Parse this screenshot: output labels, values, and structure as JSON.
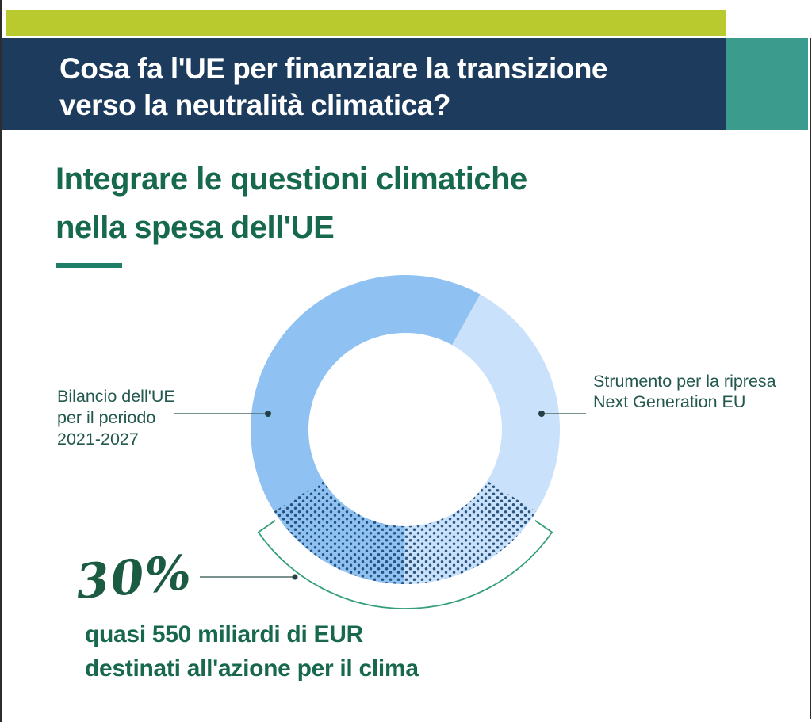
{
  "page": {
    "background": "#ffffff",
    "frame_line_color": "#2d2d2d"
  },
  "header": {
    "accent_bar_color": "#b9ca2e",
    "band_color": "#1c3b5d",
    "teal_block_color": "#3b9b8c",
    "title_color": "#ffffff",
    "title_line1": "Cosa fa l'UE per finanziare la transizione",
    "title_line2": "verso la neutralità climatica?"
  },
  "section": {
    "heading_color": "#17694e",
    "underline_color": "#1f7e66",
    "heading_line1": "Integrare le questioni climatiche",
    "heading_line2": "nella spesa dell'UE"
  },
  "chart_data": {
    "type": "pie",
    "subtype": "donut",
    "title": "Integrare le questioni climatiche nella spesa dell'UE",
    "grid": false,
    "legend_position": "callouts",
    "segments": [
      {
        "name": "Bilancio dell'UE per il periodo 2021-2027",
        "share_pct": 58,
        "start_deg": 180.2,
        "color": "#8fc2f3"
      },
      {
        "name": "Strumento per la ripresa Next Generation EU",
        "share_pct": 42,
        "start_deg": 29,
        "color": "#c9e1fa"
      }
    ],
    "rotation_deg": 29,
    "highlight": {
      "share_pct": 30,
      "centered_at_deg": 180,
      "label": "30%",
      "description_line1": "quasi 550 miliardi di EUR",
      "description_line2": "destinati all'azione per il clima",
      "pattern_dot_color": "#1d4a74",
      "bracket_color": "#35a077"
    },
    "callouts": {
      "text_color": "#23584e",
      "leader_color": "#4f6f68",
      "marker_color": "#233f47",
      "left_lines": [
        "Bilancio dell'UE",
        "per il periodo",
        "2021-2027"
      ],
      "right_lines": [
        "Strumento per la ripresa",
        "Next Generation EU"
      ]
    }
  }
}
